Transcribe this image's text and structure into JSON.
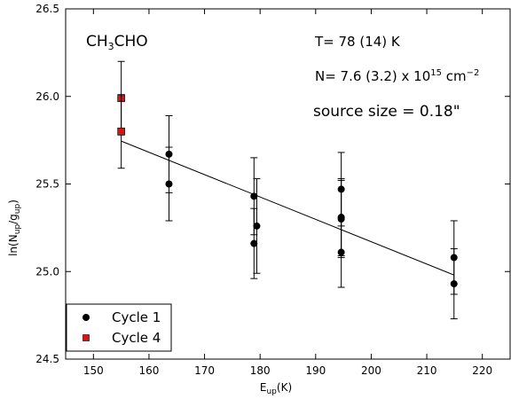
{
  "chart_data": {
    "type": "scatter",
    "xlabel": "E_up(K)",
    "ylabel": "ln(N_up/g_up)",
    "xlim": [
      145,
      225
    ],
    "ylim": [
      24.5,
      26.5
    ],
    "x_ticks": [
      150,
      160,
      170,
      180,
      190,
      200,
      210,
      220
    ],
    "y_ticks": [
      24.5,
      25.0,
      25.5,
      26.0,
      26.5
    ],
    "grid": false,
    "legend_position": "bottom-left",
    "annotations": {
      "molecule": "CH3CHO",
      "temperature": "T= 78 (14) K",
      "column_density": "N= 7.6 (3.2) x 10^15 cm^-2",
      "source_size": "source size = 0.18\""
    },
    "series": [
      {
        "name": "Cycle 1",
        "color": "#000000",
        "marker": "circle",
        "points": [
          {
            "x": 163.6,
            "y": 25.67,
            "err": 0.22
          },
          {
            "x": 163.6,
            "y": 25.5,
            "err": 0.21
          },
          {
            "x": 178.9,
            "y": 25.43,
            "err": 0.22
          },
          {
            "x": 178.9,
            "y": 25.16,
            "err": 0.2
          },
          {
            "x": 179.4,
            "y": 25.26,
            "err": 0.27
          },
          {
            "x": 194.6,
            "y": 25.47,
            "err": 0.21
          },
          {
            "x": 194.6,
            "y": 25.31,
            "err": 0.22
          },
          {
            "x": 194.6,
            "y": 25.3,
            "err": 0.22
          },
          {
            "x": 194.6,
            "y": 25.11,
            "err": 0.2
          },
          {
            "x": 214.9,
            "y": 25.08,
            "err": 0.21
          },
          {
            "x": 214.9,
            "y": 24.93,
            "err": 0.2
          }
        ]
      },
      {
        "name": "Cycle 4",
        "color": "#dd1111",
        "marker": "square",
        "points": [
          {
            "x": 155.0,
            "y": 25.99,
            "err": 0.21
          },
          {
            "x": 155.0,
            "y": 25.8,
            "err": 0.21
          }
        ]
      }
    ],
    "fit_line": {
      "x": [
        155.0,
        214.9
      ],
      "y": [
        25.745,
        24.98
      ]
    }
  }
}
